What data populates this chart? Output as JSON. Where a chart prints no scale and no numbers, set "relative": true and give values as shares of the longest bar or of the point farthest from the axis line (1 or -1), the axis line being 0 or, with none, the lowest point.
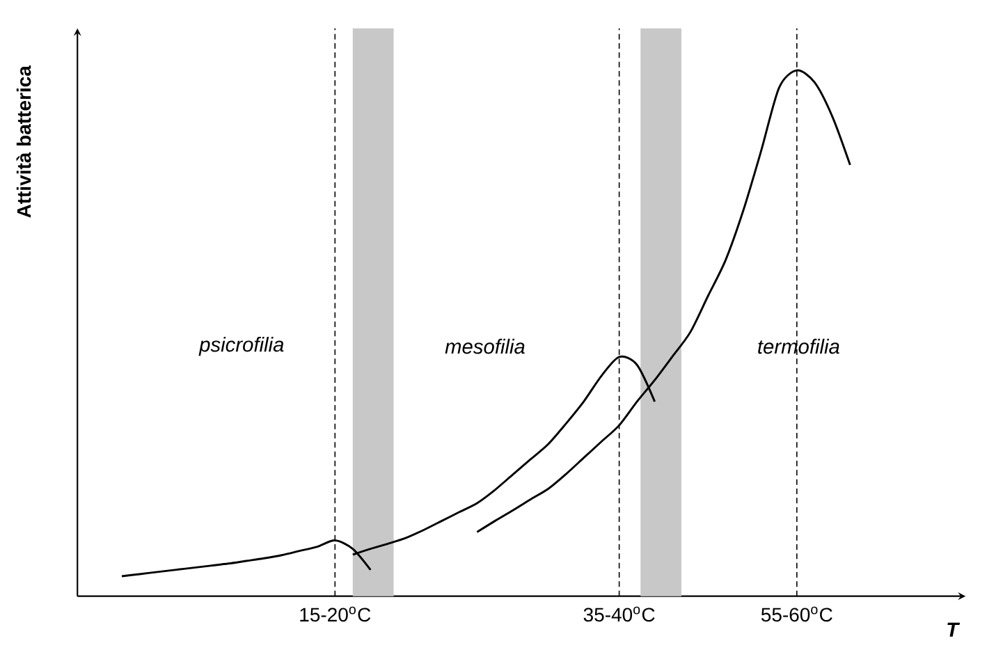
{
  "chart_data": {
    "type": "line",
    "relative": true,
    "xlabel": "T",
    "ylabel": "Attività batterica",
    "categories": [
      null,
      null,
      null,
      null,
      null,
      null,
      null,
      null,
      null,
      null,
      null,
      null,
      null,
      null,
      "15-20$^{o}$C",
      null,
      null,
      null,
      null,
      null,
      null,
      null,
      null,
      null,
      null,
      null,
      null,
      null,
      null,
      null,
      "35-40$^{o}$C",
      null,
      null,
      null,
      null,
      null,
      null,
      null,
      null,
      null,
      "55-60$^{o}$C",
      null,
      null,
      null,
      null,
      null,
      null,
      null,
      null,
      null
    ],
    "series": [
      {
        "color": "#000000",
        "values": [
          null,
          null,
          0.038,
          0.042,
          0.046,
          0.05,
          0.054,
          0.058,
          0.062,
          0.067,
          0.072,
          0.078,
          0.086,
          0.094,
          0.106,
          0.09,
          0.05,
          null,
          null,
          null,
          null,
          null,
          null,
          null,
          null,
          null,
          null,
          null,
          null,
          null,
          null,
          null,
          null,
          null,
          null,
          null,
          null,
          null,
          null,
          null,
          null,
          null,
          null,
          null,
          null,
          null,
          null,
          null,
          null,
          null
        ]
      },
      {
        "color": "#000000",
        "values": [
          null,
          null,
          null,
          null,
          null,
          null,
          null,
          null,
          null,
          null,
          null,
          null,
          null,
          null,
          null,
          0.079,
          0.09,
          0.1,
          0.111,
          0.126,
          0.143,
          0.16,
          0.177,
          0.202,
          0.231,
          0.26,
          0.289,
          0.328,
          0.37,
          0.419,
          0.455,
          0.44,
          0.37,
          null,
          null,
          null,
          null,
          null,
          null,
          null,
          null,
          null,
          null,
          null,
          null,
          null,
          null,
          null,
          null,
          null
        ]
      },
      {
        "color": "#000000",
        "values": [
          null,
          null,
          null,
          null,
          null,
          null,
          null,
          null,
          null,
          null,
          null,
          null,
          null,
          null,
          null,
          null,
          null,
          null,
          null,
          null,
          null,
          null,
          0.122,
          0.143,
          0.163,
          0.184,
          0.204,
          0.232,
          0.263,
          0.294,
          0.325,
          0.37,
          0.411,
          0.456,
          0.502,
          0.571,
          0.64,
          0.735,
          0.848,
          0.967,
          1,
          0.977,
          0.912,
          0.82,
          null,
          null,
          null,
          null,
          null,
          null
        ]
      }
    ],
    "grid": "x",
    "annotations": [
      "*psicrofilia*",
      "*mesofilia*",
      "*termofilia*"
    ]
  }
}
